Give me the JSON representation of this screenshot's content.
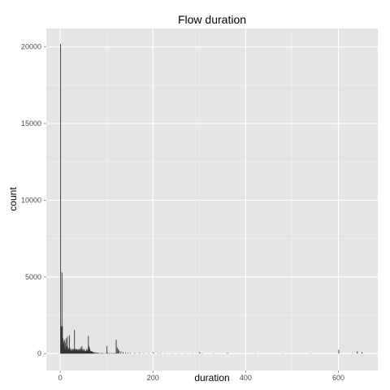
{
  "chart_data": {
    "type": "bar",
    "title": "Flow duration",
    "xlabel": "duration",
    "ylabel": "count",
    "xlim": [
      -30,
      685
    ],
    "ylim": [
      -1100,
      21200
    ],
    "x_ticks": [
      0,
      200,
      400,
      600
    ],
    "x_tick_labels": [
      "0",
      "200",
      "400",
      "600"
    ],
    "y_ticks": [
      0,
      5000,
      10000,
      15000,
      20000
    ],
    "y_tick_labels": [
      "0",
      "5000",
      "10000",
      "15000",
      "20000"
    ],
    "grid": true,
    "legend": "none",
    "colors": {
      "panel": "#e5e5e5",
      "grid": "#ffffff",
      "bar": "#333333"
    },
    "bin_width": 1,
    "x": [
      0,
      1,
      2,
      3,
      4,
      5,
      6,
      7,
      8,
      9,
      10,
      11,
      12,
      13,
      14,
      15,
      16,
      17,
      18,
      19,
      20,
      21,
      22,
      23,
      24,
      25,
      26,
      27,
      28,
      29,
      30,
      31,
      32,
      33,
      34,
      35,
      36,
      37,
      38,
      39,
      40,
      41,
      42,
      43,
      44,
      45,
      46,
      47,
      48,
      49,
      50,
      51,
      52,
      53,
      54,
      55,
      56,
      57,
      58,
      59,
      60,
      61,
      62,
      63,
      64,
      65,
      66,
      67,
      68,
      69,
      70,
      72,
      74,
      76,
      78,
      80,
      82,
      85,
      88,
      90,
      92,
      95,
      98,
      100,
      102,
      105,
      108,
      110,
      112,
      114,
      116,
      118,
      120,
      122,
      124,
      126,
      130,
      135,
      140,
      145,
      150,
      160,
      170,
      180,
      190,
      200,
      210,
      215,
      225,
      240,
      255,
      270,
      285,
      300,
      305,
      330,
      360,
      420,
      480,
      540,
      600,
      630,
      640,
      650
    ],
    "values": [
      20200,
      1800,
      1700,
      5300,
      1800,
      1000,
      600,
      800,
      400,
      900,
      700,
      300,
      1000,
      500,
      300,
      1100,
      400,
      300,
      300,
      1200,
      400,
      200,
      300,
      200,
      200,
      300,
      200,
      300,
      200,
      300,
      1550,
      300,
      200,
      300,
      200,
      300,
      200,
      250,
      300,
      200,
      250,
      300,
      200,
      400,
      200,
      300,
      500,
      200,
      300,
      200,
      150,
      300,
      200,
      200,
      150,
      150,
      300,
      200,
      200,
      300,
      1150,
      500,
      400,
      300,
      200,
      150,
      150,
      150,
      150,
      100,
      100,
      100,
      80,
      70,
      60,
      60,
      50,
      40,
      40,
      40,
      30,
      30,
      30,
      500,
      60,
      40,
      40,
      30,
      30,
      20,
      40,
      30,
      900,
      400,
      300,
      200,
      150,
      100,
      80,
      60,
      50,
      40,
      40,
      30,
      20,
      80,
      20,
      30,
      20,
      20,
      20,
      20,
      20,
      100,
      20,
      20,
      50,
      20,
      20,
      20,
      250,
      30,
      150,
      100
    ],
    "bars": [
      {
        "x": 0,
        "count": 20200
      },
      {
        "x": 3,
        "count": 5300
      }
    ]
  }
}
